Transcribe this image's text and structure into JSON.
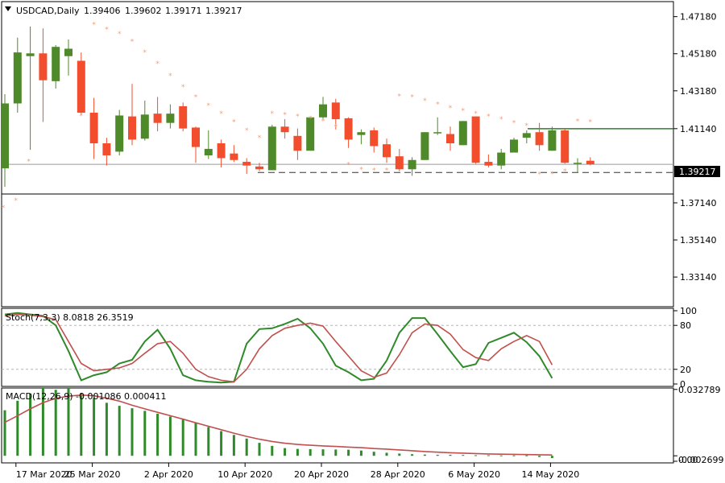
{
  "chart_data": [
    {
      "type": "candlestick",
      "symbol_label": "USDCAD,Daily",
      "ohlc_header": [
        "1.39406",
        "1.39602",
        "1.39171",
        "1.39217"
      ],
      "current_price_label": "1.39217",
      "y_ticks": [
        "1.47180",
        "1.45180",
        "1.43180",
        "1.41140",
        "1.37140",
        "1.35140",
        "1.33140"
      ],
      "y_tick_values": [
        1.4718,
        1.4518,
        1.4318,
        1.4114,
        1.3714,
        1.3514,
        1.3314
      ],
      "ylim": [
        1.3154,
        1.4799
      ],
      "colors": {
        "up": "#4f8a2a",
        "down": "#f24e2e",
        "sar": "#f0a07a",
        "level": "#2f7d2f"
      },
      "resistance_level": 1.4114,
      "support_level": 1.3878,
      "x_labels": [
        "17 Mar 2020",
        "25 Mar 2020",
        "2 Apr 2020",
        "10 Apr 2020",
        "20 Apr 2020",
        "28 Apr 2020",
        "6 May 2020",
        "14 May 2020"
      ],
      "x_label_index": [
        1,
        7,
        13,
        19,
        25,
        31,
        37,
        43
      ],
      "candles": [
        [
          1.39,
          1.43,
          1.38,
          1.425
        ],
        [
          1.425,
          1.4605,
          1.42,
          1.4525
        ],
        [
          1.4505,
          1.4665,
          1.4,
          1.452
        ],
        [
          1.452,
          1.4655,
          1.415,
          1.4375
        ],
        [
          1.437,
          1.4565,
          1.433,
          1.4555
        ],
        [
          1.4505,
          1.4595,
          1.44,
          1.4545
        ],
        [
          1.448,
          1.4525,
          1.419,
          1.42
        ],
        [
          1.42,
          1.428,
          1.395,
          1.4035
        ],
        [
          1.4035,
          1.4065,
          1.3915,
          1.397
        ],
        [
          1.399,
          1.4215,
          1.397,
          1.4185
        ],
        [
          1.418,
          1.4355,
          1.4025,
          1.4055
        ],
        [
          1.406,
          1.4265,
          1.405,
          1.419
        ],
        [
          1.4195,
          1.4285,
          1.41,
          1.4145
        ],
        [
          1.4145,
          1.4245,
          1.4115,
          1.4195
        ],
        [
          1.4235,
          1.4255,
          1.41,
          1.4115
        ],
        [
          1.412,
          1.4125,
          1.393,
          1.4015
        ],
        [
          1.397,
          1.4105,
          1.395,
          1.4005
        ],
        [
          1.4035,
          1.4055,
          1.3905,
          1.3955
        ],
        [
          1.398,
          1.4025,
          1.3935,
          1.3945
        ],
        [
          1.3935,
          1.3955,
          1.387,
          1.3915
        ],
        [
          1.391,
          1.393,
          1.3885,
          1.3895
        ],
        [
          1.389,
          1.4135,
          1.389,
          1.4125
        ],
        [
          1.4125,
          1.4165,
          1.406,
          1.4095
        ],
        [
          1.4075,
          1.4115,
          1.3945,
          1.3995
        ],
        [
          1.3995,
          1.4175,
          1.3995,
          1.4175
        ],
        [
          1.4175,
          1.4285,
          1.4165,
          1.4245
        ],
        [
          1.4255,
          1.4275,
          1.411,
          1.4165
        ],
        [
          1.417,
          1.4175,
          1.401,
          1.4055
        ],
        [
          1.408,
          1.411,
          1.403,
          1.4095
        ],
        [
          1.4105,
          1.412,
          1.3985,
          1.402
        ],
        [
          1.403,
          1.406,
          1.393,
          1.396
        ],
        [
          1.3965,
          1.4005,
          1.3885,
          1.3895
        ],
        [
          1.3895,
          1.396,
          1.386,
          1.3945
        ],
        [
          1.3945,
          1.4095,
          1.3945,
          1.4095
        ],
        [
          1.4095,
          1.4175,
          1.408,
          1.4095
        ],
        [
          1.4085,
          1.4125,
          1.3995,
          1.4035
        ],
        [
          1.4025,
          1.4155,
          1.4025,
          1.4155
        ],
        [
          1.418,
          1.418,
          1.3925,
          1.393
        ],
        [
          1.3935,
          1.3975,
          1.3905,
          1.3915
        ],
        [
          1.3915,
          1.4005,
          1.3895,
          1.3985
        ],
        [
          1.3985,
          1.4065,
          1.3985,
          1.4055
        ],
        [
          1.4065,
          1.4105,
          1.4035,
          1.409
        ],
        [
          1.4095,
          1.4145,
          1.3995,
          1.4025
        ],
        [
          1.3995,
          1.4125,
          1.3995,
          1.4105
        ],
        [
          1.4105,
          1.4115,
          1.3925,
          1.393
        ],
        [
          1.393,
          1.3955,
          1.3875,
          1.393
        ],
        [
          1.3941,
          1.396,
          1.3917,
          1.3922
        ]
      ],
      "sar": [
        1.3688,
        1.3728,
        1.3938,
        null,
        null,
        null,
        1.4182,
        1.4675,
        1.465,
        1.4625,
        1.4585,
        1.4525,
        1.4465,
        1.44,
        1.434,
        1.4285,
        1.424,
        1.4195,
        1.415,
        1.4105,
        1.4065,
        1.4195,
        1.419,
        1.418,
        1.417,
        1.4155,
        1.4125,
        1.392,
        1.3895,
        1.389,
        1.389,
        1.429,
        1.4285,
        1.4265,
        1.4245,
        1.4225,
        1.421,
        1.4195,
        1.418,
        1.4165,
        1.4145,
        1.413,
        1.3868,
        1.387,
        1.3885,
        1.4155,
        1.415
      ]
    },
    {
      "type": "line",
      "title": "Stoch(7,3,3) 8.0818 26.3519",
      "y_ticks": [
        "100",
        "80",
        "20",
        "0"
      ],
      "y_tick_values": [
        100,
        80,
        20,
        0
      ],
      "ylim": [
        0,
        100
      ],
      "levels": [
        80,
        20
      ],
      "series": [
        {
          "color": "#2f8a2a",
          "values": [
            95,
            97,
            95,
            93,
            80,
            45,
            5,
            12,
            16,
            28,
            33,
            58,
            74,
            48,
            12,
            5,
            3,
            2,
            3,
            55,
            75,
            76,
            82,
            89,
            76,
            55,
            25,
            16,
            5,
            7,
            32,
            70,
            90,
            90,
            68,
            45,
            23,
            27,
            56,
            63,
            70,
            57,
            38,
            8
          ]
        },
        {
          "color": "#c0504d",
          "values": [
            93,
            95,
            94,
            92,
            88,
            58,
            28,
            18,
            20,
            22,
            28,
            42,
            55,
            58,
            42,
            20,
            10,
            5,
            3,
            20,
            48,
            66,
            76,
            80,
            83,
            79,
            58,
            38,
            18,
            9,
            15,
            40,
            70,
            82,
            80,
            68,
            47,
            36,
            32,
            48,
            58,
            66,
            58,
            26
          ]
        }
      ]
    },
    {
      "type": "bar",
      "title": "MACD(12,26,9) -0.001086 0.000411",
      "y_ticks": [
        "0.032789",
        "0.00",
        "-0.002699"
      ],
      "y_tick_values": [
        0.032789,
        0.0,
        -0.002699
      ],
      "ylim": [
        -0.0035,
        0.0335
      ],
      "colors": {
        "histogram": "#2f8a2a",
        "signal": "#c0504d"
      },
      "histogram": [
        0.0225,
        0.0272,
        0.0308,
        0.0335,
        0.0326,
        0.0335,
        0.0311,
        0.0287,
        0.0262,
        0.0247,
        0.0235,
        0.0222,
        0.0208,
        0.0194,
        0.0179,
        0.0162,
        0.0142,
        0.0122,
        0.0103,
        0.0085,
        0.0064,
        0.0049,
        0.0038,
        0.0034,
        0.0033,
        0.0032,
        0.0031,
        0.003,
        0.0026,
        0.002,
        0.0015,
        0.0011,
        0.0008,
        0.0006,
        0.0005,
        0.0005,
        0.0004,
        0.0003,
        0.0003,
        0.0002,
        0.0002,
        0.0002,
        -0.0006,
        -0.0011
      ],
      "signal": [
        0.0165,
        0.0198,
        0.0232,
        0.0262,
        0.0284,
        0.0295,
        0.03,
        0.0297,
        0.0285,
        0.027,
        0.025,
        0.0232,
        0.0215,
        0.0198,
        0.0181,
        0.0163,
        0.0146,
        0.0129,
        0.0112,
        0.0096,
        0.0082,
        0.0071,
        0.0062,
        0.0056,
        0.0052,
        0.0049,
        0.0046,
        0.0043,
        0.004,
        0.0036,
        0.0033,
        0.0029,
        0.0025,
        0.0021,
        0.0018,
        0.0015,
        0.0013,
        0.0011,
        0.0009,
        0.0008,
        0.0007,
        0.0006,
        0.0005,
        0.0004
      ]
    }
  ]
}
